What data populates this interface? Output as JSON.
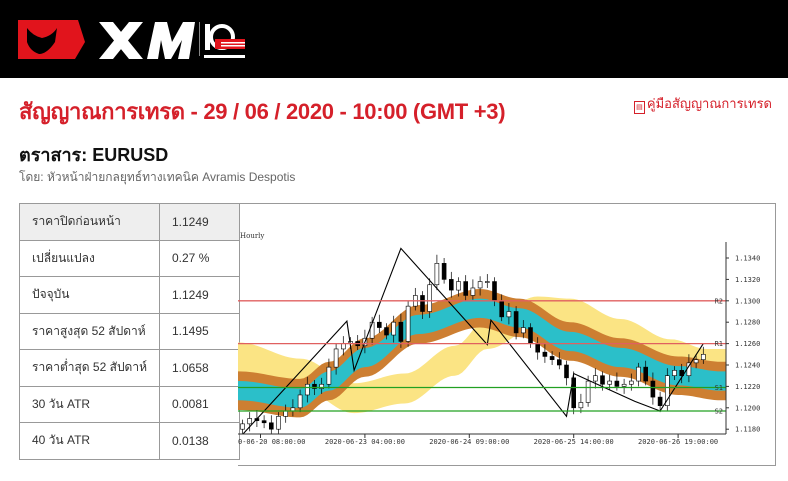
{
  "header": {
    "logo_text": "XM",
    "logo_badge": "10 YEARS ANNIVERSARY"
  },
  "title": "สัญญาณการเทรด - 29 / 06 / 2020 - 10:00 (GMT +3)",
  "guide_link": {
    "icon": "pdf-icon",
    "label": "คู่มือสัญญาณการเทรด"
  },
  "instrument": "ตราสาร: EURUSD",
  "author": "โดย: หัวหน้าฝ่ายกลยุทธ์ทางเทคนิค Avramis Despotis",
  "stats": [
    {
      "label": "ราคาปิดก่อนหน้า",
      "value": "1.1249"
    },
    {
      "label": "เปลี่ยนแปลง",
      "value": "0.27 %"
    },
    {
      "label": "ปัจจุบัน",
      "value": "1.1249"
    },
    {
      "label": "ราคาสูงสุด 52 สัปดาห์",
      "value": "1.1495"
    },
    {
      "label": "ราคาต่ำสุด 52 สัปดาห์",
      "value": "1.0658"
    },
    {
      "label": "30 วัน ATR",
      "value": "0.0081"
    },
    {
      "label": "40 วัน ATR",
      "value": "0.0138"
    }
  ],
  "colors": {
    "brand": "#d5202a",
    "resistance": "#e06060",
    "support": "#22a022",
    "band_outer": "#cd7f32",
    "band_inner": "#2bbfc9",
    "band_shifted": "#fbe484"
  },
  "chart_data": {
    "type": "candlestick",
    "timeframe_label": "Hourly",
    "ylim": [
      1.1172,
      1.1352
    ],
    "y_ticks": [
      "1.1180",
      "1.1200",
      "1.1220",
      "1.1240",
      "1.1260",
      "1.1280",
      "1.1300",
      "1.1320",
      "1.1340"
    ],
    "x_ticks": [
      {
        "bar": 0,
        "label": "0-06-20 08:00:00"
      },
      {
        "bar": 29,
        "label": "2020-06-23 04:00:00"
      },
      {
        "bar": 58,
        "label": "2020-06-24 09:00:00"
      },
      {
        "bar": 87,
        "label": "2020-06-25 14:00:00"
      },
      {
        "bar": 116,
        "label": "2020-06-26 19:00:00"
      }
    ],
    "levels": [
      {
        "name": "R2",
        "value": 1.13,
        "kind": "resistance"
      },
      {
        "name": "R1",
        "value": 1.126,
        "kind": "resistance"
      },
      {
        "name": "S1",
        "value": 1.1219,
        "kind": "support"
      },
      {
        "name": "S2",
        "value": 1.1197,
        "kind": "support"
      }
    ],
    "closes": [
      [
        -5,
        1.1185
      ],
      [
        -3,
        1.119
      ],
      [
        -1,
        1.1188
      ],
      [
        1,
        1.1186
      ],
      [
        3,
        1.118
      ],
      [
        5,
        1.1192
      ],
      [
        7,
        1.1197
      ],
      [
        9,
        1.12
      ],
      [
        11,
        1.1212
      ],
      [
        13,
        1.1222
      ],
      [
        15,
        1.1218
      ],
      [
        17,
        1.1222
      ],
      [
        19,
        1.1238
      ],
      [
        21,
        1.1255
      ],
      [
        23,
        1.126
      ],
      [
        25,
        1.1262
      ],
      [
        27,
        1.1258
      ],
      [
        29,
        1.1265
      ],
      [
        31,
        1.128
      ],
      [
        33,
        1.1275
      ],
      [
        35,
        1.1268
      ],
      [
        37,
        1.128
      ],
      [
        39,
        1.1262
      ],
      [
        41,
        1.1295
      ],
      [
        43,
        1.1305
      ],
      [
        45,
        1.129
      ],
      [
        47,
        1.1315
      ],
      [
        49,
        1.1335
      ],
      [
        51,
        1.132
      ],
      [
        53,
        1.131
      ],
      [
        55,
        1.1318
      ],
      [
        57,
        1.1305
      ],
      [
        59,
        1.1312
      ],
      [
        61,
        1.1318
      ],
      [
        63,
        1.1318
      ],
      [
        65,
        1.13
      ],
      [
        67,
        1.1285
      ],
      [
        69,
        1.129
      ],
      [
        71,
        1.127
      ],
      [
        73,
        1.1275
      ],
      [
        75,
        1.126
      ],
      [
        77,
        1.1252
      ],
      [
        79,
        1.1248
      ],
      [
        81,
        1.1245
      ],
      [
        83,
        1.124
      ],
      [
        85,
        1.1228
      ],
      [
        87,
        1.12
      ],
      [
        89,
        1.1205
      ],
      [
        91,
        1.1225
      ],
      [
        93,
        1.123
      ],
      [
        95,
        1.1222
      ],
      [
        97,
        1.1225
      ],
      [
        99,
        1.122
      ],
      [
        101,
        1.1222
      ],
      [
        103,
        1.1225
      ],
      [
        105,
        1.1238
      ],
      [
        107,
        1.1225
      ],
      [
        109,
        1.121
      ],
      [
        111,
        1.1202
      ],
      [
        113,
        1.123
      ],
      [
        115,
        1.1235
      ],
      [
        117,
        1.123
      ],
      [
        119,
        1.1242
      ],
      [
        121,
        1.1245
      ],
      [
        123,
        1.125
      ]
    ],
    "zigzag": [
      [
        -5,
        1.1175
      ],
      [
        24,
        1.1281
      ],
      [
        26,
        1.1235
      ],
      [
        39,
        1.1349
      ],
      [
        63,
        1.1259
      ],
      [
        64,
        1.1282
      ],
      [
        85,
        1.1192
      ],
      [
        87,
        1.1232
      ],
      [
        104,
        1.1206
      ],
      [
        111,
        1.1197
      ],
      [
        123,
        1.126
      ]
    ],
    "band_ma": {
      "center": [
        [
          -6,
          1.1216
        ],
        [
          11,
          1.1209
        ],
        [
          19,
          1.1225
        ],
        [
          29,
          1.1247
        ],
        [
          44,
          1.1278
        ],
        [
          61,
          1.1293
        ],
        [
          72,
          1.1284
        ],
        [
          86,
          1.1262
        ],
        [
          100,
          1.1247
        ],
        [
          116,
          1.123
        ],
        [
          128,
          1.1225
        ]
      ],
      "outer_half_width": 0.0018,
      "inner_half_width": 0.0009
    },
    "band_shifted": {
      "center": [
        [
          -6,
          1.1247
        ],
        [
          11,
          1.1232
        ],
        [
          26,
          1.1209
        ],
        [
          40,
          1.1218
        ],
        [
          54,
          1.1244
        ],
        [
          63,
          1.1269
        ],
        [
          77,
          1.129
        ],
        [
          86,
          1.1288
        ],
        [
          100,
          1.1269
        ],
        [
          114,
          1.125
        ],
        [
          124,
          1.1241
        ]
      ],
      "half_width": 0.0014
    }
  }
}
